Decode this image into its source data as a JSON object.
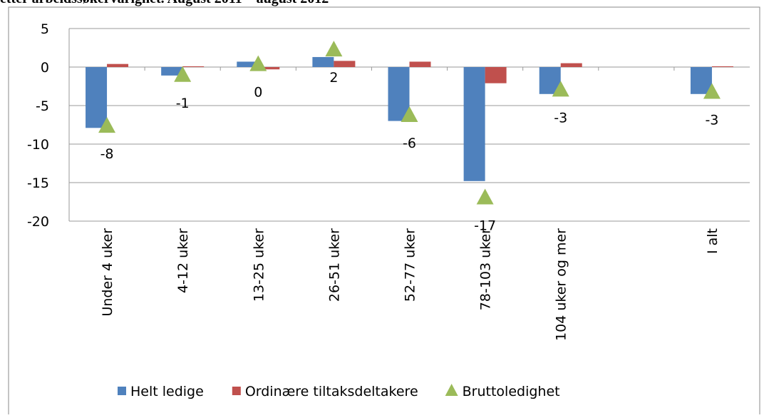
{
  "chart_data": {
    "type": "bar",
    "title": "etter arbeidssøkervarighet. August 2011 – august 2012",
    "categories": [
      "Under 4 uker",
      "4-12 uker",
      "13-25 uker",
      "26-51 uker",
      "52-77 uker",
      "78-103 uker",
      "104 uker og mer",
      null,
      "I alt"
    ],
    "series": [
      {
        "name": "Helt ledige",
        "color": "#4f81bd",
        "type": "bar",
        "values": [
          -7.9,
          -1.1,
          0.7,
          1.3,
          -7.0,
          -14.8,
          -3.5,
          null,
          -3.5
        ]
      },
      {
        "name": "Ordinære tiltaksdeltakere",
        "color": "#c0504d",
        "type": "bar",
        "values": [
          0.4,
          0.1,
          -0.3,
          0.8,
          0.7,
          -2.1,
          0.5,
          null,
          0.1
        ]
      },
      {
        "name": "Bruttoledighet",
        "color": "#9bbb59",
        "type": "marker",
        "values": [
          -7.6,
          -1.0,
          0.4,
          2.3,
          -6.2,
          -16.9,
          -2.9,
          null,
          -3.2
        ],
        "value_labels": [
          "-8",
          "-1",
          "0",
          "2",
          "-6",
          "-17",
          "-3",
          null,
          "-3"
        ]
      }
    ],
    "ylim": [
      -20,
      5
    ],
    "yticks": [
      -20,
      -15,
      -10,
      -5,
      0,
      5
    ],
    "grid": true,
    "legend": "bottom"
  }
}
